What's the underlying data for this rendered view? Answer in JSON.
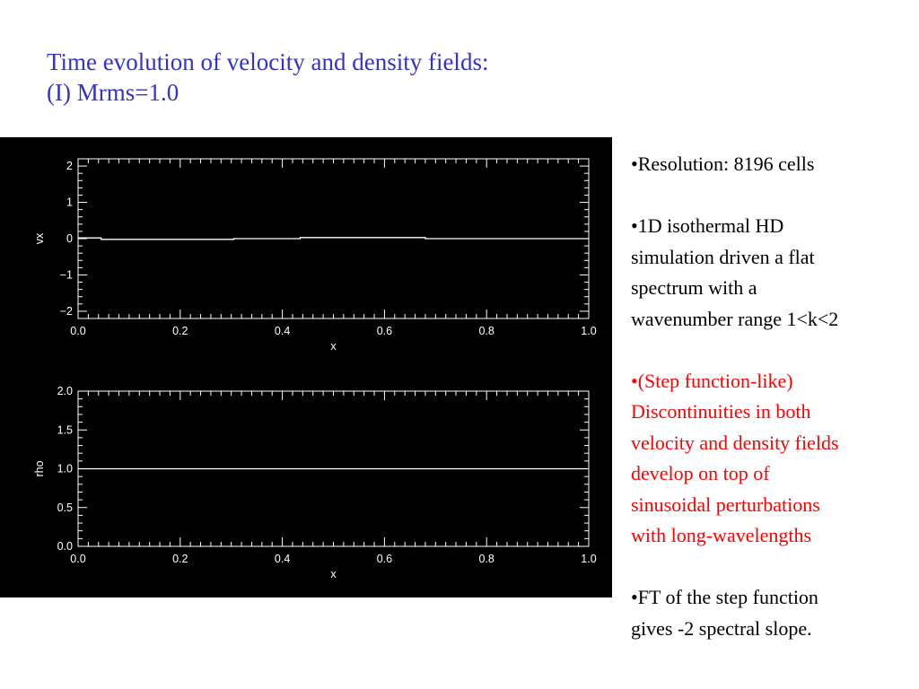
{
  "slide": {
    "title_lines": [
      "Time evolution of velocity and density fields:",
      "(I) Mrms=1.0"
    ],
    "bullets": [
      {
        "color": "#000000",
        "lines": [
          "•Resolution: 8196 cells"
        ]
      },
      {
        "color": "#000000",
        "lines": [
          "•1D isothermal HD",
          "simulation driven a flat",
          "spectrum with a",
          "wavenumber range 1<k<2"
        ]
      },
      {
        "color": "#ff0000",
        "lines": [
          "•(Step function-like)",
          "Discontinuities in both",
          "velocity and density fields",
          "develop on top of",
          "sinusoidal perturbations",
          "with long-wavelengths"
        ]
      },
      {
        "color": "#000000",
        "lines": [
          "•FT of the step function",
          "gives -2 spectral slope."
        ]
      }
    ],
    "colors": {
      "title": "#3333cc",
      "plot_background": "#000000",
      "plot_foreground": "#ffffff"
    }
  },
  "chart_data": [
    {
      "type": "line",
      "xlabel": "x",
      "ylabel": "vx",
      "xlim": [
        0.0,
        1.0
      ],
      "ylim": [
        -2.2,
        2.2
      ],
      "x_ticks": [
        0.0,
        0.2,
        0.4,
        0.6,
        0.8,
        1.0
      ],
      "x_tick_labels": [
        "0.0",
        "0.2",
        "0.4",
        "0.6",
        "0.8",
        "1.0"
      ],
      "y_ticks": [
        -2,
        -1,
        0,
        1,
        2
      ],
      "y_tick_labels": [
        "−2",
        "−1",
        "0",
        "1",
        "2"
      ],
      "series": [
        {
          "x": [
            0.0,
            0.045,
            0.045,
            0.305,
            0.305,
            0.435,
            0.435,
            0.68,
            0.68,
            1.0
          ],
          "y": [
            0.02,
            0.02,
            -0.02,
            -0.02,
            0.0,
            0.0,
            0.03,
            0.03,
            0.0,
            0.0
          ]
        }
      ]
    },
    {
      "type": "line",
      "xlabel": "x",
      "ylabel": "rho",
      "xlim": [
        0.0,
        1.0
      ],
      "ylim": [
        0.0,
        2.0
      ],
      "x_ticks": [
        0.0,
        0.2,
        0.4,
        0.6,
        0.8,
        1.0
      ],
      "x_tick_labels": [
        "0.0",
        "0.2",
        "0.4",
        "0.6",
        "0.8",
        "1.0"
      ],
      "y_ticks": [
        0.0,
        0.5,
        1.0,
        1.5,
        2.0
      ],
      "y_tick_labels": [
        "0.0",
        "0.5",
        "1.0",
        "1.5",
        "2.0"
      ],
      "series": [
        {
          "x": [
            0.0,
            1.0
          ],
          "y": [
            1.0,
            1.0
          ]
        }
      ]
    }
  ]
}
